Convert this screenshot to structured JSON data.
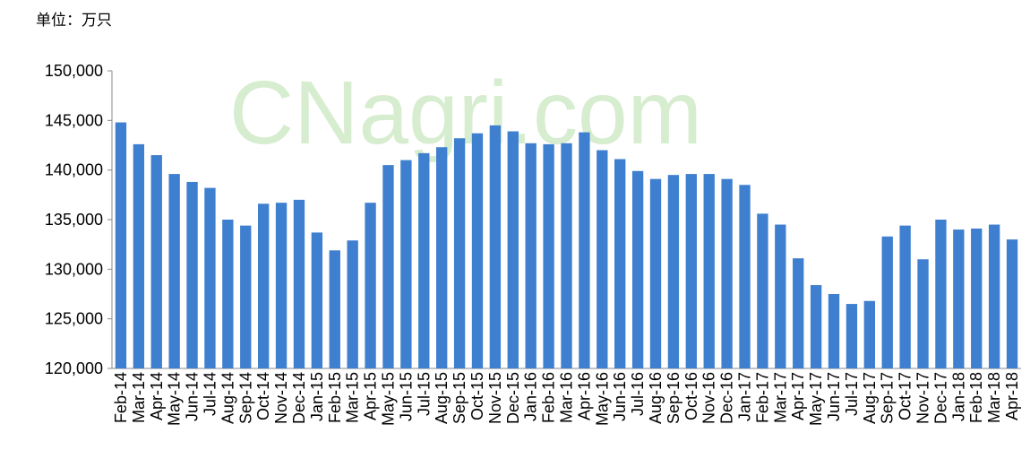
{
  "chart_data": {
    "type": "bar",
    "unit_label": "单位：万只",
    "watermark": "CNagri.com",
    "categories": [
      "Feb-14",
      "Mar-14",
      "Apr-14",
      "May-14",
      "Jun-14",
      "Jul-14",
      "Aug-14",
      "Sep-14",
      "Oct-14",
      "Nov-14",
      "Dec-14",
      "Jan-15",
      "Feb-15",
      "Mar-15",
      "Apr-15",
      "May-15",
      "Jun-15",
      "Jul-15",
      "Aug-15",
      "Sep-15",
      "Oct-15",
      "Nov-15",
      "Dec-15",
      "Jan-16",
      "Feb-16",
      "Mar-16",
      "Apr-16",
      "May-16",
      "Jun-16",
      "Jul-16",
      "Aug-16",
      "Sep-16",
      "Oct-16",
      "Nov-16",
      "Dec-16",
      "Jan-17",
      "Feb-17",
      "Mar-17",
      "Apr-17",
      "May-17",
      "Jun-17",
      "Jul-17",
      "Aug-17",
      "Sep-17",
      "Oct-17",
      "Nov-17",
      "Dec-17",
      "Jan-18",
      "Feb-18",
      "Mar-18",
      "Apr-18"
    ],
    "values": [
      144800,
      142600,
      141500,
      139600,
      138800,
      138200,
      135000,
      134400,
      136600,
      136700,
      137000,
      133700,
      131900,
      132900,
      136700,
      140500,
      141000,
      141700,
      142300,
      143200,
      143700,
      144500,
      143900,
      142700,
      142600,
      142700,
      143800,
      142000,
      141100,
      139900,
      139100,
      139500,
      139600,
      139600,
      139100,
      138500,
      135600,
      134500,
      131100,
      128400,
      127500,
      126500,
      126800,
      133300,
      134400,
      131000,
      135000,
      134000,
      134100,
      134500,
      133000
    ],
    "color": "#3f7fd0",
    "ylim": [
      120000,
      150000
    ],
    "yticks": [
      {
        "value": 120000,
        "label": "120,000"
      },
      {
        "value": 125000,
        "label": "125,000"
      },
      {
        "value": 130000,
        "label": "130,000"
      },
      {
        "value": 135000,
        "label": "135,000"
      },
      {
        "value": 140000,
        "label": "140,000"
      },
      {
        "value": 145000,
        "label": "145,000"
      },
      {
        "value": 150000,
        "label": "150,000"
      }
    ],
    "grid": false
  }
}
